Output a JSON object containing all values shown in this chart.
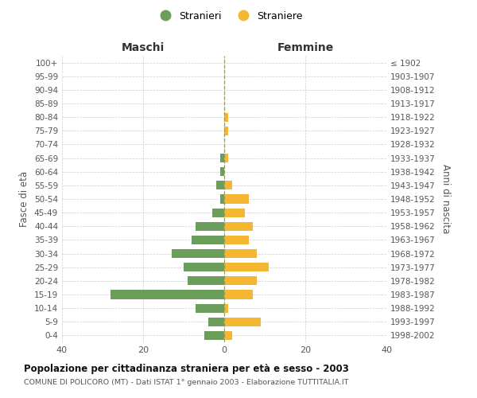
{
  "age_groups": [
    "0-4",
    "5-9",
    "10-14",
    "15-19",
    "20-24",
    "25-29",
    "30-34",
    "35-39",
    "40-44",
    "45-49",
    "50-54",
    "55-59",
    "60-64",
    "65-69",
    "70-74",
    "75-79",
    "80-84",
    "85-89",
    "90-94",
    "95-99",
    "100+"
  ],
  "birth_years": [
    "1998-2002",
    "1993-1997",
    "1988-1992",
    "1983-1987",
    "1978-1982",
    "1973-1977",
    "1968-1972",
    "1963-1967",
    "1958-1962",
    "1953-1957",
    "1948-1952",
    "1943-1947",
    "1938-1942",
    "1933-1937",
    "1928-1932",
    "1923-1927",
    "1918-1922",
    "1913-1917",
    "1908-1912",
    "1903-1907",
    "≤ 1902"
  ],
  "maschi": [
    5,
    4,
    7,
    28,
    9,
    10,
    13,
    8,
    7,
    3,
    1,
    2,
    1,
    1,
    0,
    0,
    0,
    0,
    0,
    0,
    0
  ],
  "femmine": [
    2,
    9,
    1,
    7,
    8,
    11,
    8,
    6,
    7,
    5,
    6,
    2,
    0,
    1,
    0,
    1,
    1,
    0,
    0,
    0,
    0
  ],
  "color_maschi": "#6a9e5a",
  "color_femmine": "#f5b731",
  "dashed_line_color": "#999966",
  "title": "Popolazione per cittadinanza straniera per età e sesso - 2003",
  "subtitle": "COMUNE DI POLICORO (MT) - Dati ISTAT 1° gennaio 2003 - Elaborazione TUTTITALIA.IT",
  "ylabel_left": "Fasce di età",
  "ylabel_right": "Anni di nascita",
  "label_maschi": "Maschi",
  "label_femmine": "Femmine",
  "legend_maschi": "Stranieri",
  "legend_femmine": "Straniere",
  "xlim": 40,
  "background_color": "#ffffff",
  "grid_color": "#cccccc",
  "bar_height": 0.65
}
